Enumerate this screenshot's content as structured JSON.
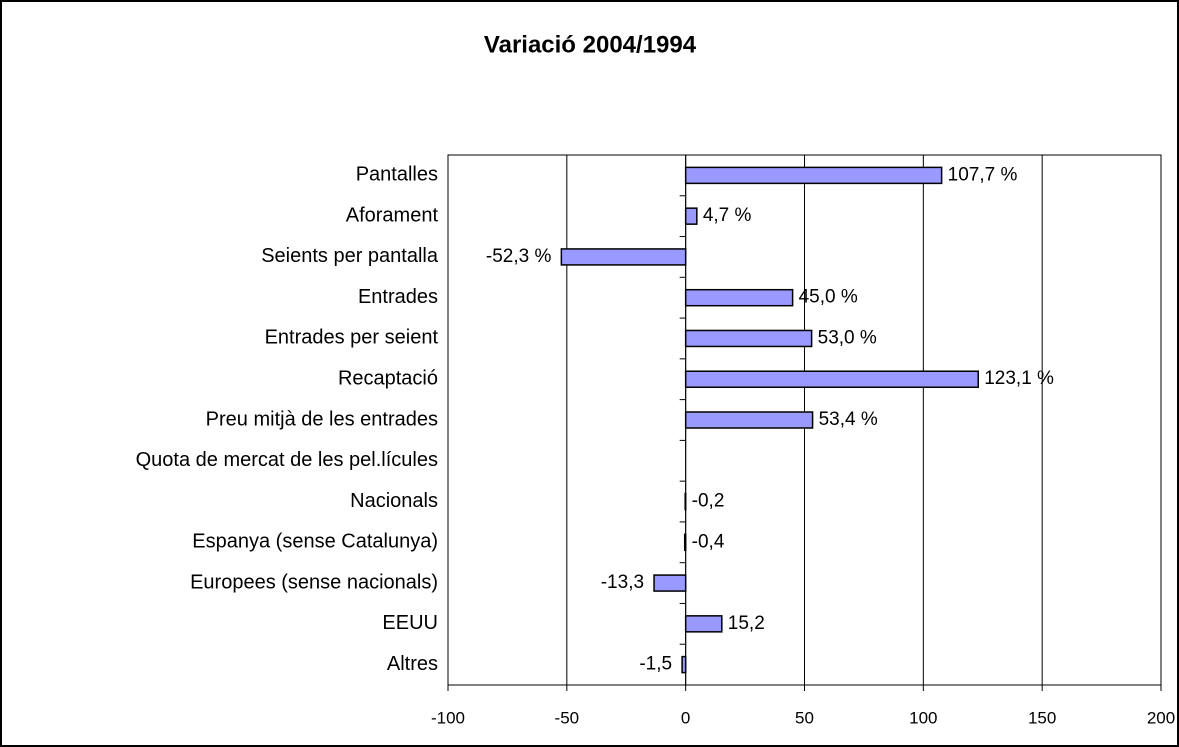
{
  "chart_data": {
    "type": "hbar",
    "title": "Variació 2004/1994",
    "categories": [
      "Pantalles",
      "Aforament",
      "Seients per pantalla",
      "Entrades",
      "Entrades per seient",
      "Recaptació",
      "Preu mitjà de les entrades",
      "Quota de mercat de les pel.lícules",
      "Nacionals",
      "Espanya (sense Catalunya)",
      "Europees (sense nacionals)",
      "EEUU",
      "Altres"
    ],
    "values": [
      107.7,
      4.7,
      -52.3,
      45.0,
      53.0,
      123.1,
      53.4,
      null,
      -0.2,
      -0.4,
      -13.3,
      15.2,
      -1.5
    ],
    "value_labels": [
      "107,7 %",
      "4,7 %",
      "-52,3 %",
      "45,0 %",
      "53,0 %",
      "123,1 %",
      "53,4 %",
      null,
      "-0,2",
      "-0,4",
      "-13,3",
      "15,2",
      "-1,5"
    ],
    "color": "#9999ff",
    "xlim": [
      -100,
      200
    ],
    "xticks": [
      -100,
      -50,
      0,
      50,
      100,
      150,
      200
    ],
    "grid": true
  }
}
